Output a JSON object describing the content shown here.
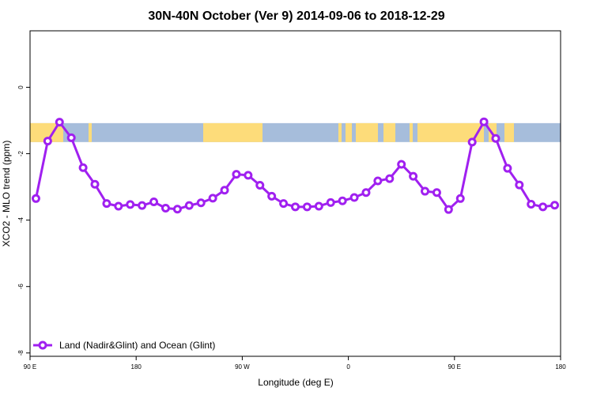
{
  "chart_data": {
    "type": "line",
    "title": "30N-40N October (Ver 9)   2014-09-06 to 2018-12-29",
    "xlabel": "Longitude (deg E)",
    "ylabel": "XCO2 - MLO trend (ppm)",
    "x_tick_labels": [
      "90 E",
      "180",
      "90 W",
      "0",
      "90 E",
      "180"
    ],
    "y_tick_labels": [
      "0",
      "-2",
      "-4",
      "-6",
      "-8"
    ],
    "xlim": [
      90,
      540
    ],
    "ylim": [
      -8.1,
      1.7
    ],
    "x_ticks": [
      90,
      180,
      270,
      360,
      450,
      540
    ],
    "y_ticks": [
      0,
      -2,
      -4,
      -6,
      -8
    ],
    "grid": false,
    "legend_position": "bottom-left",
    "series": [
      {
        "name": "Land (Nadir&Glint) and Ocean (Glint)",
        "color": "#a020f0",
        "x": [
          95,
          105,
          115,
          125,
          135,
          145,
          155,
          165,
          175,
          185,
          195,
          205,
          215,
          225,
          235,
          245,
          255,
          265,
          275,
          285,
          295,
          305,
          315,
          325,
          335,
          345,
          355,
          365,
          375,
          385,
          395,
          405,
          415,
          425,
          435,
          445,
          455,
          465,
          475,
          485,
          495,
          505,
          515,
          525,
          535
        ],
        "y": [
          -3.35,
          -1.62,
          -1.05,
          -1.52,
          -2.42,
          -2.92,
          -3.5,
          -3.58,
          -3.53,
          -3.56,
          -3.45,
          -3.64,
          -3.67,
          -3.56,
          -3.48,
          -3.34,
          -3.1,
          -2.62,
          -2.65,
          -2.95,
          -3.28,
          -3.5,
          -3.6,
          -3.6,
          -3.58,
          -3.47,
          -3.42,
          -3.32,
          -3.17,
          -2.82,
          -2.75,
          -2.32,
          -2.68,
          -3.13,
          -3.17,
          -3.68,
          -3.35,
          -1.65,
          -1.04,
          -1.54,
          -2.44,
          -2.94,
          -3.52,
          -3.6,
          -3.55
        ]
      }
    ],
    "map_band": {
      "y_top": -1.08,
      "y_bottom": -1.65,
      "ocean_color": "#a6bddb",
      "land_color": "#fddc7a"
    }
  }
}
